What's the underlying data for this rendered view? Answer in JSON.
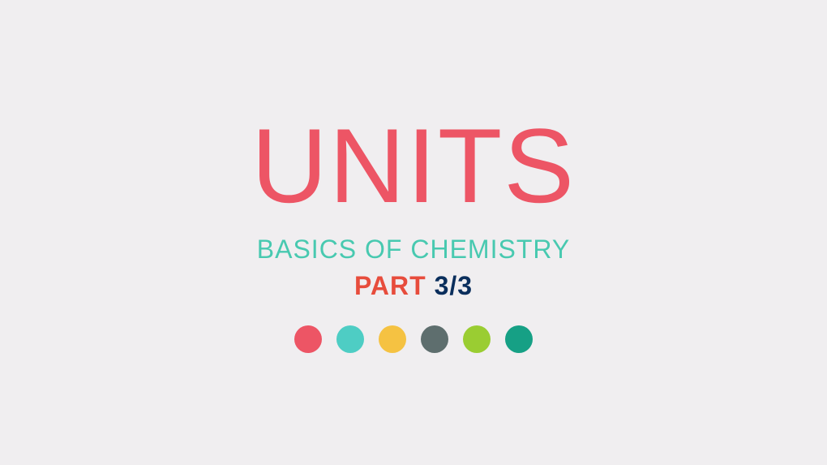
{
  "background_color": "#f0eef0",
  "title": {
    "text": "UNITS",
    "color": "#ed5565",
    "fontsize": 130
  },
  "subtitle": {
    "text": "BASICS OF CHEMISTRY",
    "color": "#48c9b0",
    "fontsize": 32
  },
  "part": {
    "label": "PART",
    "label_color": "#e74c3c",
    "fraction": " 3/3",
    "fraction_color": "#0a2e5c",
    "fontsize": 32
  },
  "dots": {
    "size": 34,
    "colors": [
      "#ed5565",
      "#4ecdc4",
      "#f5c242",
      "#5e6e6e",
      "#9acd32",
      "#16a085"
    ]
  }
}
